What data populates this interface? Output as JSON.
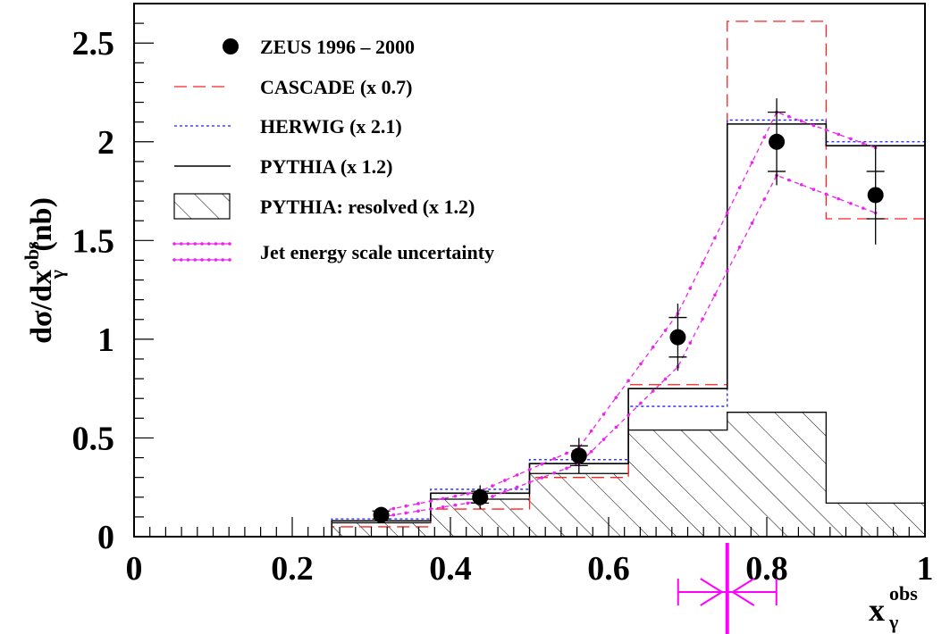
{
  "chart_data": {
    "type": "histogram",
    "xlim": [
      0,
      1
    ],
    "ylim": [
      0,
      2.7
    ],
    "xlabel": {
      "main": "x",
      "sup": "obs",
      "sub": "γ"
    },
    "ylabel": {
      "prefix": "dσ/dx",
      "sup": "obs",
      "sub": "γ",
      "suffix": " (nb)"
    },
    "x_ticks": [
      {
        "value": 0,
        "label": "0"
      },
      {
        "value": 0.2,
        "label": "0.2"
      },
      {
        "value": 0.4,
        "label": "0.4"
      },
      {
        "value": 0.6,
        "label": "0.6"
      },
      {
        "value": 0.8,
        "label": "0.8"
      },
      {
        "value": 1,
        "label": "1"
      }
    ],
    "y_ticks": [
      {
        "value": 0,
        "label": "0"
      },
      {
        "value": 0.5,
        "label": "0.5"
      },
      {
        "value": 1,
        "label": "1"
      },
      {
        "value": 1.5,
        "label": "1.5"
      },
      {
        "value": 2,
        "label": "2"
      },
      {
        "value": 2.5,
        "label": "2.5"
      }
    ],
    "bin_edges": [
      0.25,
      0.375,
      0.5,
      0.625,
      0.75,
      0.875,
      1.0
    ],
    "data_points": {
      "name": "ZEUS 1996 – 2000",
      "x": [
        0.3125,
        0.4375,
        0.5625,
        0.6875,
        0.8125,
        0.9375
      ],
      "y": [
        0.11,
        0.2,
        0.41,
        1.01,
        2.0,
        1.73
      ],
      "stat_err": [
        0.02,
        0.03,
        0.05,
        0.1,
        0.15,
        0.12
      ],
      "tot_err": [
        0.03,
        0.06,
        0.09,
        0.17,
        0.22,
        0.25
      ]
    },
    "histograms": [
      {
        "name": "CASCADE (x 0.7)",
        "style": "dashed",
        "color": "#ff2020",
        "values": [
          0.05,
          0.14,
          0.3,
          0.77,
          2.61,
          1.61
        ]
      },
      {
        "name": "HERWIG (x 2.1)",
        "style": "dotted",
        "color": "#1f1fff",
        "values": [
          0.09,
          0.24,
          0.39,
          0.66,
          2.11,
          2.0
        ]
      },
      {
        "name": "PYTHIA (x 1.2)",
        "style": "solid",
        "color": "#000000",
        "values": [
          0.08,
          0.22,
          0.37,
          0.75,
          2.09,
          1.98
        ]
      },
      {
        "name": "PYTHIA: resolved (x 1.2)",
        "style": "hatched",
        "color": "#000000",
        "values": [
          0.07,
          0.19,
          0.32,
          0.54,
          0.63,
          0.17
        ]
      }
    ],
    "jes_band": {
      "name": "Jet energy scale uncertainty",
      "color": "#ee22ee",
      "x": [
        0.3125,
        0.4375,
        0.5625,
        0.6875,
        0.8125,
        0.9375
      ],
      "upper": [
        0.13,
        0.23,
        0.45,
        1.13,
        2.15,
        1.97
      ],
      "lower": [
        0.1,
        0.18,
        0.37,
        0.86,
        1.83,
        1.64
      ]
    },
    "legend_position": "top-left",
    "marker_annotation": {
      "x": 0.75,
      "color": "#ff00ff"
    }
  }
}
